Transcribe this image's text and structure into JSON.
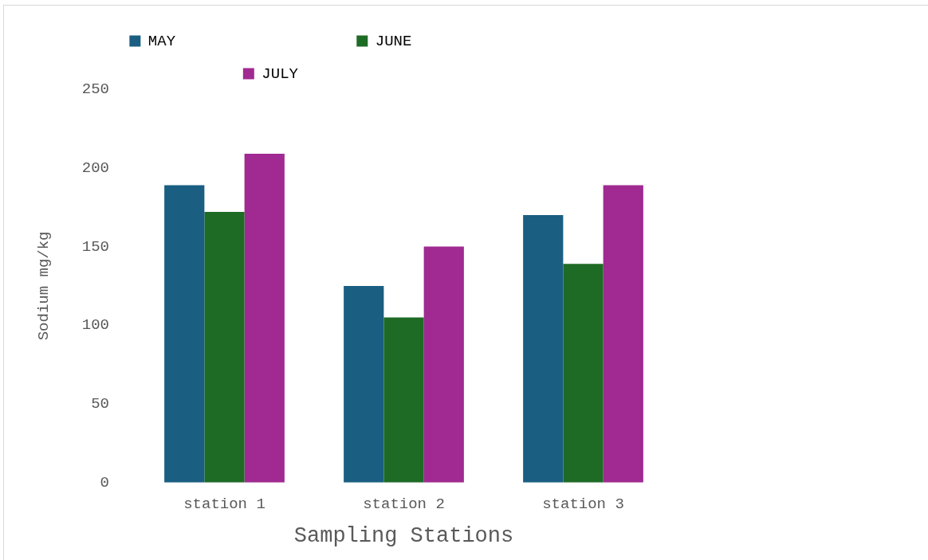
{
  "chart_data": {
    "type": "bar",
    "xlabel": "Sampling Stations",
    "ylabel": "Sodium mg/kg",
    "categories": [
      "station 1",
      "station 2",
      "station 3"
    ],
    "series": [
      {
        "name": "MAY",
        "color": "#1a5e82",
        "values": [
          189,
          125,
          170
        ]
      },
      {
        "name": "JUNE",
        "color": "#1e6b26",
        "values": [
          172,
          105,
          139
        ]
      },
      {
        "name": "JULY",
        "color": "#a02a92",
        "values": [
          209,
          150,
          189
        ]
      }
    ],
    "ylim": [
      0,
      250
    ],
    "yticks": [
      0,
      50,
      100,
      150,
      200,
      250
    ],
    "grid": false,
    "legend": "top"
  }
}
